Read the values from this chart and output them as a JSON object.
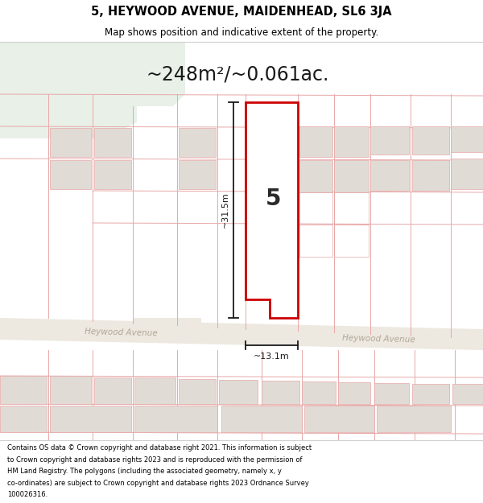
{
  "title_line1": "5, HEYWOOD AVENUE, MAIDENHEAD, SL6 3JA",
  "title_line2": "Map shows position and indicative extent of the property.",
  "area_text": "~248m²/~0.061ac.",
  "label_5": "5",
  "label_width": "~13.1m",
  "label_height": "~31.5m",
  "road_label": "Heywood Avenue",
  "footer_text": "Contains OS data © Crown copyright and database right 2021. This information is subject to Crown copyright and database rights 2023 and is reproduced with the permission of HM Land Registry. The polygons (including the associated geometry, namely x, y co-ordinates) are subject to Crown copyright and database rights 2023 Ordnance Survey 100026316.",
  "bg_color": "#f8f8f6",
  "map_bg": "#f8f8f6",
  "green_area": "#e8f0e8",
  "road_color": "#ede8e0",
  "plot_outline_color": "#cc0000",
  "plot_fill": "#ffffff",
  "building_fill": "#e0dbd5",
  "grid_line_color": "#e8a8a8",
  "footer_bg": "#ffffff",
  "title_bg": "#ffffff",
  "road_label_color": "#b0a898",
  "dim_line_color": "#1a1a1a"
}
